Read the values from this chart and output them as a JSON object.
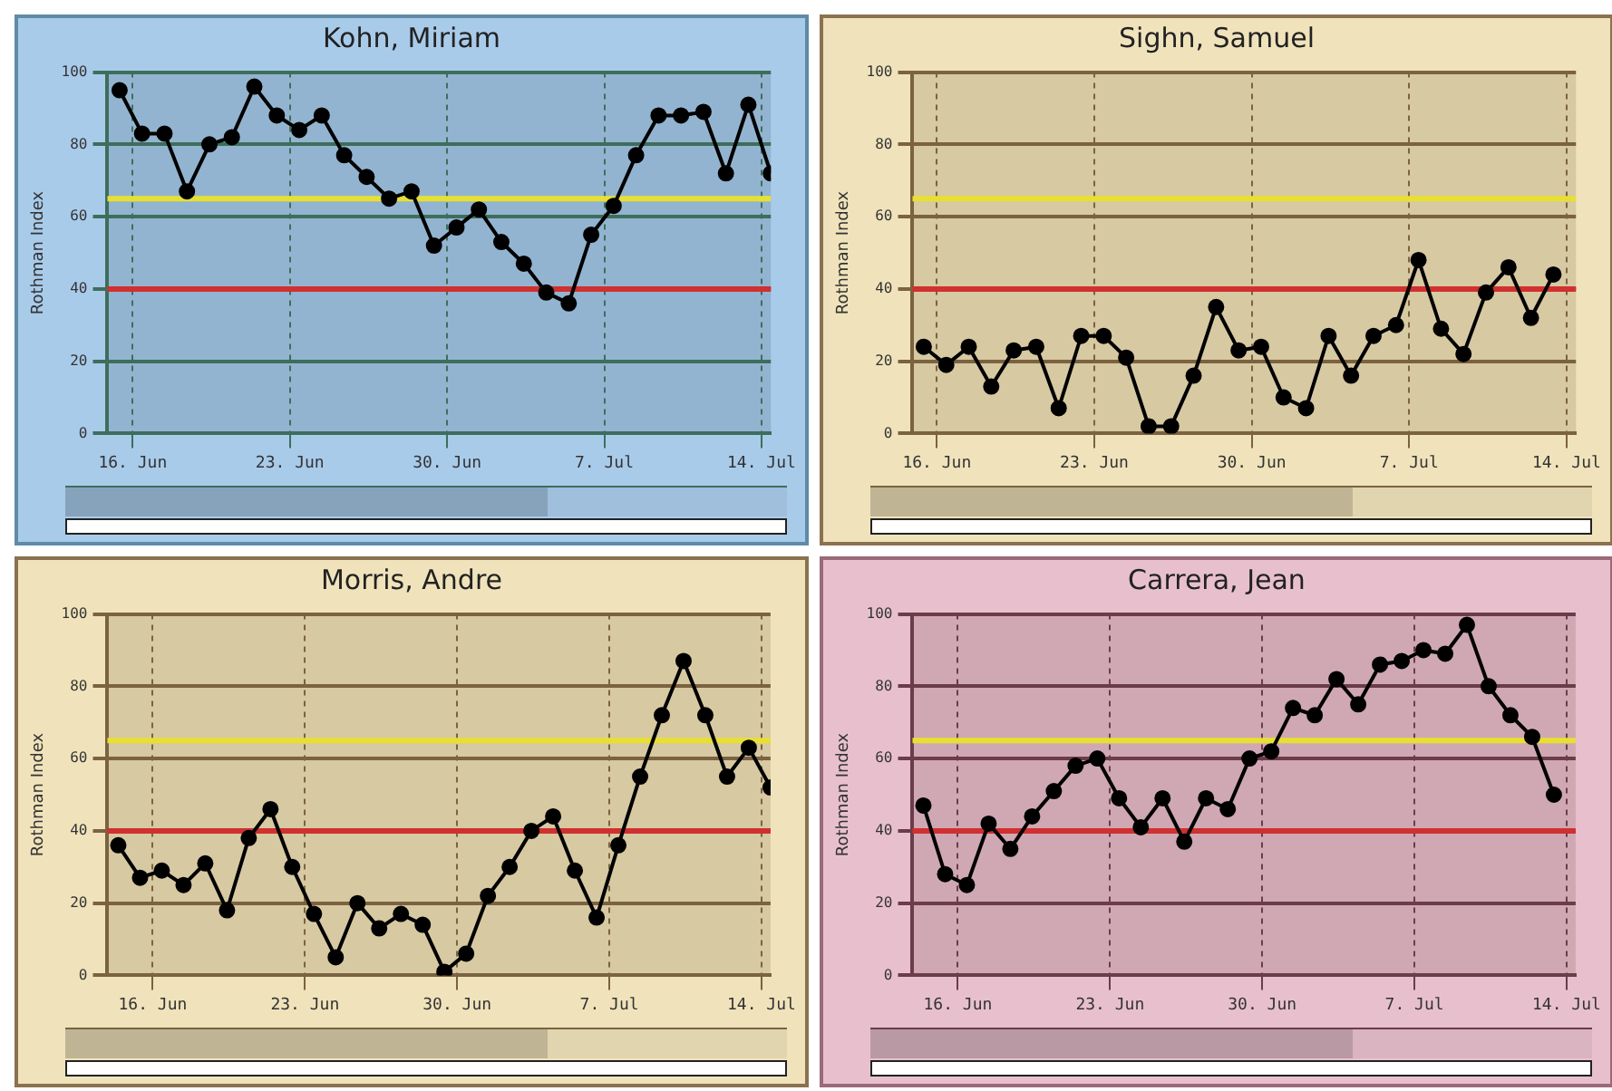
{
  "chart_data": [
    {
      "type": "line",
      "title": "Kohn, Miriam",
      "ylabel": "Rothman Index",
      "color": "#000000",
      "marker": "circle",
      "grid": true,
      "x": [
        "--06-15T10:00",
        "--06-16T10:00",
        "--06-17T10:00",
        "--06-18T10:00",
        "--06-19T10:00",
        "--06-20T10:00",
        "--06-21T10:00",
        "--06-22T10:00",
        "--06-23T10:00",
        "--06-24T10:00",
        "--06-25T10:00",
        "--06-26T10:00",
        "--06-27T10:00",
        "--06-28T10:00",
        "--06-29T10:00",
        "--06-30T10:00",
        "--07-01T10:00",
        "--07-02T10:00",
        "--07-03T10:00",
        "--07-04T10:00",
        "--07-05T10:00",
        "--07-06T10:00",
        "--07-07T10:00",
        "--07-08T10:00",
        "--07-09T10:00",
        "--07-10T10:00",
        "--07-11T10:00",
        "--07-12T10:00",
        "--07-13T10:00",
        "--07-14T10:00"
      ],
      "values": [
        95,
        83,
        83,
        67,
        80,
        82,
        96,
        88,
        84,
        88,
        77,
        71,
        65,
        67,
        52,
        57,
        62,
        53,
        47,
        39,
        36,
        55,
        63,
        77,
        88,
        88,
        89,
        72,
        91,
        72
      ],
      "xlim": [
        "--06-14T21:00",
        "--07-14T10:00"
      ],
      "xticks": [
        {
          "value": "--06-16",
          "label": "16. Jun"
        },
        {
          "value": "--06-23",
          "label": "23. Jun"
        },
        {
          "value": "--06-30",
          "label": "30. Jun"
        },
        {
          "value": "--07-07",
          "label": "7. Jul"
        },
        {
          "value": "--07-14",
          "label": "14. Jul"
        }
      ],
      "ylim": [
        0,
        100
      ],
      "yticks": [
        0,
        20,
        40,
        60,
        80,
        100
      ],
      "ref_lines": [
        {
          "axis": "y",
          "value": 65,
          "color": "#e8e030"
        },
        {
          "axis": "y",
          "value": 40,
          "color": "#d03030"
        }
      ]
    },
    {
      "type": "line",
      "title": "Sighn, Samuel",
      "ylabel": "Rothman Index",
      "color": "#000000",
      "marker": "circle",
      "grid": true,
      "x": [
        "--06-15T10:00",
        "--06-16T10:00",
        "--06-17T10:00",
        "--06-18T10:00",
        "--06-19T10:00",
        "--06-20T10:00",
        "--06-21T10:00",
        "--06-22T10:00",
        "--06-23T10:00",
        "--06-24T10:00",
        "--06-25T10:00",
        "--06-26T10:00",
        "--06-27T10:00",
        "--06-28T10:00",
        "--06-29T10:00",
        "--06-30T10:00",
        "--07-01T10:00",
        "--07-02T10:00",
        "--07-03T10:00",
        "--07-04T10:00",
        "--07-05T10:00",
        "--07-06T10:00",
        "--07-07T10:00",
        "--07-08T10:00",
        "--07-09T10:00",
        "--07-10T10:00",
        "--07-11T10:00",
        "--07-12T10:00",
        "--07-13T10:00"
      ],
      "values": [
        24,
        19,
        24,
        13,
        23,
        24,
        7,
        27,
        27,
        21,
        2,
        2,
        16,
        35,
        23,
        24,
        10,
        7,
        27,
        16,
        27,
        30,
        48,
        29,
        22,
        39,
        46,
        32,
        44
      ],
      "xlim": [
        "--06-14T22:00",
        "--07-14T10:00"
      ],
      "xticks": [
        {
          "value": "--06-16",
          "label": "16. Jun"
        },
        {
          "value": "--06-23",
          "label": "23. Jun"
        },
        {
          "value": "--06-30",
          "label": "30. Jun"
        },
        {
          "value": "--07-07",
          "label": "7. Jul"
        },
        {
          "value": "--07-14",
          "label": "14. Jul"
        }
      ],
      "ylim": [
        0,
        100
      ],
      "yticks": [
        0,
        20,
        40,
        60,
        80,
        100
      ],
      "ref_lines": [
        {
          "axis": "y",
          "value": 65,
          "color": "#e8e030"
        },
        {
          "axis": "y",
          "value": 40,
          "color": "#d03030"
        }
      ]
    },
    {
      "type": "line",
      "title": "Morris, Andre",
      "ylabel": "Rothman Index",
      "color": "#000000",
      "marker": "circle",
      "grid": true,
      "x": [
        "--06-14T10:00",
        "--06-15T10:00",
        "--06-16T10:00",
        "--06-17T10:00",
        "--06-18T10:00",
        "--06-19T10:00",
        "--06-20T10:00",
        "--06-21T10:00",
        "--06-22T10:00",
        "--06-23T10:00",
        "--06-24T10:00",
        "--06-25T10:00",
        "--06-26T10:00",
        "--06-27T10:00",
        "--06-28T10:00",
        "--06-29T10:00",
        "--06-30T10:00",
        "--07-01T10:00",
        "--07-02T10:00",
        "--07-03T10:00",
        "--07-04T10:00",
        "--07-05T10:00",
        "--07-06T10:00",
        "--07-07T10:00",
        "--07-08T10:00",
        "--07-09T10:00",
        "--07-10T10:00",
        "--07-11T10:00",
        "--07-12T10:00",
        "--07-13T10:00",
        "--07-14T10:00"
      ],
      "values": [
        36,
        27,
        29,
        25,
        31,
        18,
        38,
        46,
        30,
        17,
        5,
        20,
        13,
        17,
        14,
        1,
        6,
        22,
        30,
        40,
        44,
        29,
        16,
        36,
        55,
        72,
        87,
        72,
        55,
        63,
        52
      ],
      "xlim": [
        "--06-13T22:00",
        "--07-14T10:00"
      ],
      "xticks": [
        {
          "value": "--06-16",
          "label": "16. Jun"
        },
        {
          "value": "--06-23",
          "label": "23. Jun"
        },
        {
          "value": "--06-30",
          "label": "30. Jun"
        },
        {
          "value": "--07-07",
          "label": "7. Jul"
        },
        {
          "value": "--07-14",
          "label": "14. Jul"
        }
      ],
      "ylim": [
        0,
        100
      ],
      "yticks": [
        0,
        20,
        40,
        60,
        80,
        100
      ],
      "ref_lines": [
        {
          "axis": "y",
          "value": 65,
          "color": "#e8e030"
        },
        {
          "axis": "y",
          "value": 40,
          "color": "#d03030"
        }
      ]
    },
    {
      "type": "line",
      "title": "Carrera, Jean",
      "ylabel": "Rothman Index",
      "color": "#000000",
      "marker": "circle",
      "grid": true,
      "x": [
        "--06-14T10:00",
        "--06-15T10:00",
        "--06-16T10:00",
        "--06-17T10:00",
        "--06-18T10:00",
        "--06-19T10:00",
        "--06-20T10:00",
        "--06-21T10:00",
        "--06-22T10:00",
        "--06-23T10:00",
        "--06-24T10:00",
        "--06-25T10:00",
        "--06-26T10:00",
        "--06-27T10:00",
        "--06-28T10:00",
        "--06-29T10:00",
        "--06-30T10:00",
        "--07-01T10:00",
        "--07-02T10:00",
        "--07-03T10:00",
        "--07-04T10:00",
        "--07-05T10:00",
        "--07-06T10:00",
        "--07-07T10:00",
        "--07-08T10:00",
        "--07-09T10:00",
        "--07-10T10:00",
        "--07-11T10:00",
        "--07-12T10:00",
        "--07-13T10:00"
      ],
      "values": [
        47,
        28,
        25,
        42,
        35,
        44,
        51,
        58,
        60,
        49,
        41,
        49,
        37,
        49,
        46,
        60,
        62,
        74,
        72,
        82,
        75,
        86,
        87,
        90,
        89,
        97,
        80,
        72,
        66,
        50
      ],
      "xlim": [
        "--06-13T22:00",
        "--07-14T10:00"
      ],
      "xticks": [
        {
          "value": "--06-16",
          "label": "16. Jun"
        },
        {
          "value": "--06-23",
          "label": "23. Jun"
        },
        {
          "value": "--06-30",
          "label": "30. Jun"
        },
        {
          "value": "--07-07",
          "label": "7. Jul"
        },
        {
          "value": "--07-14",
          "label": "14. Jul"
        }
      ],
      "ylim": [
        0,
        100
      ],
      "yticks": [
        0,
        20,
        40,
        60,
        80,
        100
      ],
      "ref_lines": [
        {
          "axis": "y",
          "value": 65,
          "color": "#e8e030"
        },
        {
          "axis": "y",
          "value": 40,
          "color": "#d03030"
        }
      ]
    }
  ]
}
